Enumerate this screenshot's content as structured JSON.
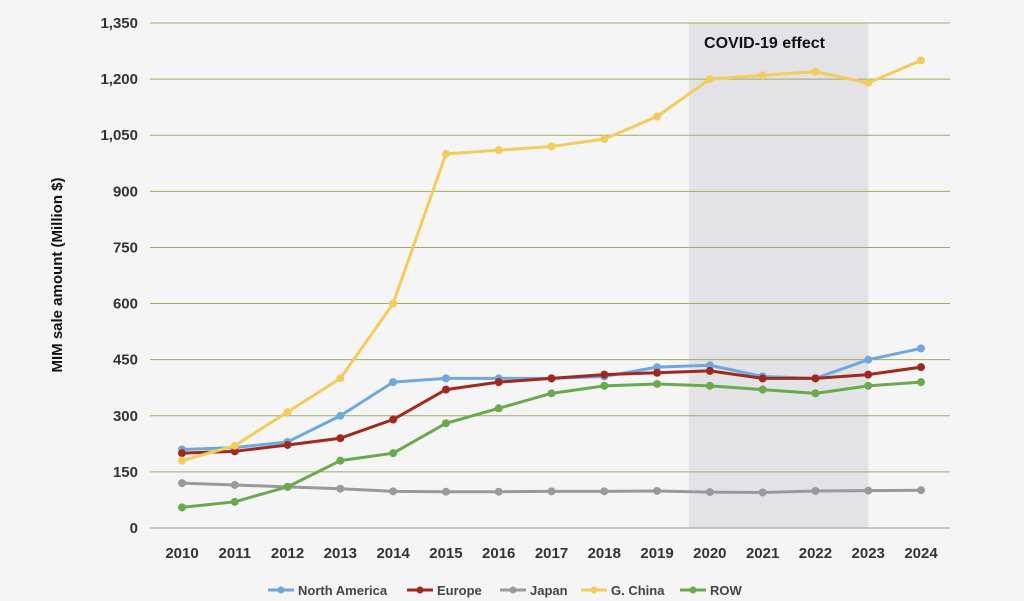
{
  "chart_data": {
    "type": "line",
    "title": "",
    "xlabel": "",
    "ylabel": "MIM sale amount (Million $)",
    "ylim": [
      0,
      1350
    ],
    "yticks": [
      0,
      150,
      300,
      450,
      600,
      750,
      900,
      1050,
      1200,
      1350
    ],
    "ytick_labels": [
      "0",
      "150",
      "300",
      "450",
      "600",
      "750",
      "900",
      "1,050",
      "1,200",
      "1,350"
    ],
    "categories": [
      "2010",
      "2011",
      "2012",
      "2013",
      "2014",
      "2015",
      "2016",
      "2017",
      "2018",
      "2019",
      "2020",
      "2021",
      "2022",
      "2023",
      "2024"
    ],
    "grid": "horizontal",
    "legend_position": "bottom",
    "annotation": {
      "label": "COVID-19 effect",
      "x_start": "2019.6",
      "x_end": "2023"
    },
    "series": [
      {
        "name": "North America",
        "color": "#6fa8dc",
        "values": [
          210,
          215,
          230,
          300,
          390,
          400,
          400,
          400,
          405,
          430,
          435,
          405,
          400,
          450,
          480
        ]
      },
      {
        "name": "Europe",
        "color": "#a0291f",
        "values": [
          200,
          205,
          222,
          240,
          290,
          370,
          390,
          400,
          410,
          415,
          420,
          400,
          400,
          410,
          430
        ]
      },
      {
        "name": "Japan",
        "color": "#9a9a9a",
        "values": [
          120,
          115,
          110,
          105,
          98,
          97,
          97,
          98,
          98,
          99,
          96,
          95,
          99,
          100,
          101
        ]
      },
      {
        "name": "G. China",
        "color": "#f2cc5c",
        "values": [
          180,
          220,
          310,
          400,
          600,
          1000,
          1010,
          1020,
          1040,
          1100,
          1200,
          1210,
          1220,
          1190,
          1250
        ]
      },
      {
        "name": "ROW",
        "color": "#6aaa4f",
        "values": [
          55,
          70,
          110,
          180,
          200,
          280,
          320,
          360,
          380,
          385,
          380,
          370,
          360,
          380,
          390
        ]
      }
    ]
  }
}
